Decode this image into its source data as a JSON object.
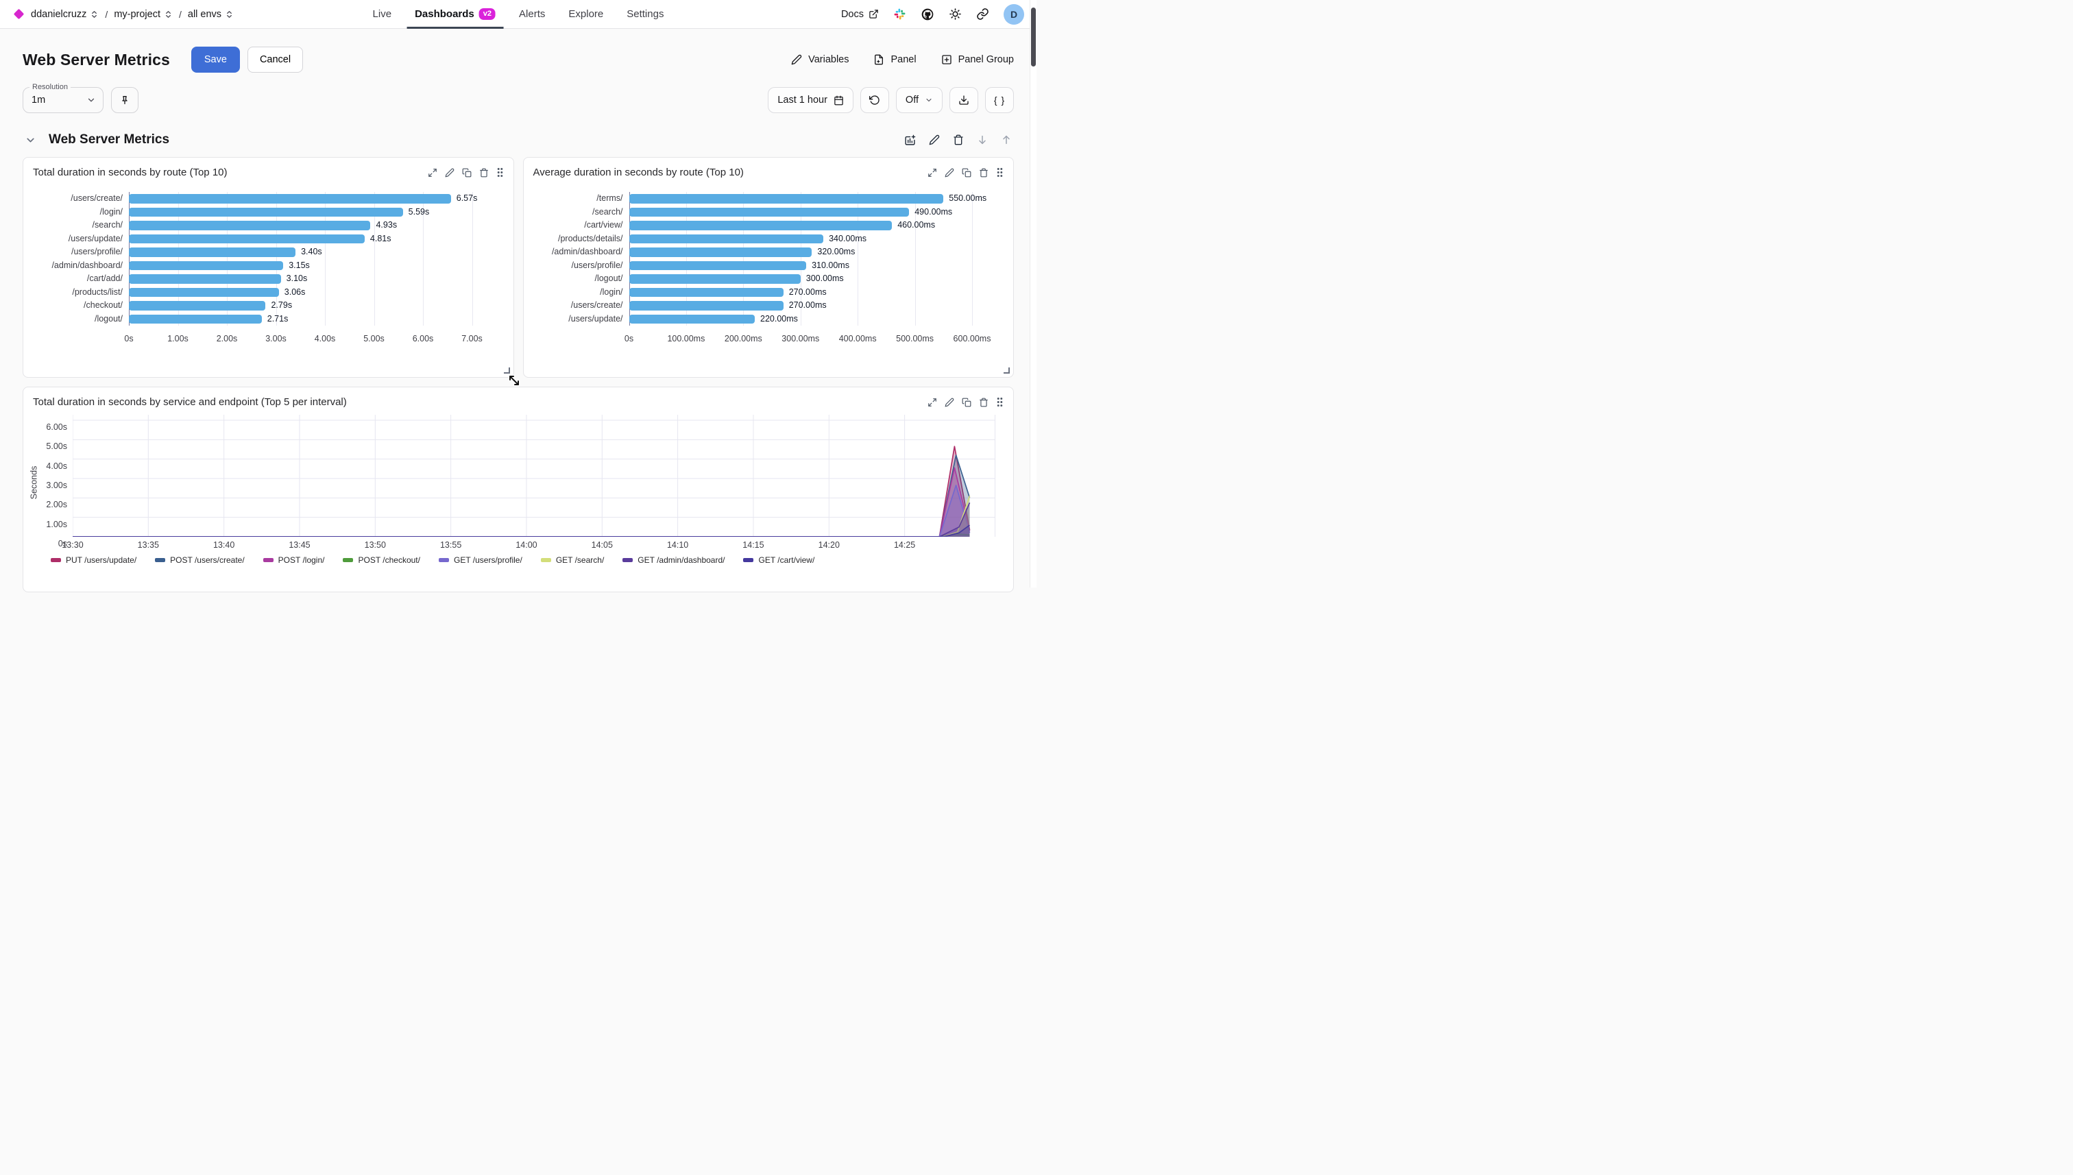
{
  "nav": {
    "breadcrumbs": [
      {
        "label": "ddanielcruzz"
      },
      {
        "label": "my-project"
      },
      {
        "label": "all envs"
      }
    ],
    "separator": "/",
    "tabs": [
      {
        "label": "Live",
        "active": false
      },
      {
        "label": "Dashboards",
        "active": true,
        "badge": "v2"
      },
      {
        "label": "Alerts",
        "active": false
      },
      {
        "label": "Explore",
        "active": false
      },
      {
        "label": "Settings",
        "active": false
      }
    ],
    "docs_label": "Docs",
    "icons": [
      "external-link-icon",
      "slack-icon",
      "github-icon",
      "theme-sun-icon",
      "share-link-icon"
    ],
    "avatar_initial": "D"
  },
  "header": {
    "title": "Web Server Metrics",
    "save_label": "Save",
    "cancel_label": "Cancel",
    "actions": [
      {
        "label": "Variables",
        "icon": "pencil-icon"
      },
      {
        "label": "Panel",
        "icon": "file-plus-icon"
      },
      {
        "label": "Panel Group",
        "icon": "plus-square-icon"
      }
    ]
  },
  "toolbar": {
    "resolution_label": "Resolution",
    "resolution_value": "1m",
    "pin_icon": "pin-icon",
    "time_range": "Last 1 hour",
    "refresh_value": "Off",
    "braces_label": "{ }"
  },
  "section": {
    "title": "Web Server Metrics"
  },
  "panels": [
    {
      "title": "Total duration in seconds by route (Top 10)"
    },
    {
      "title": "Average duration in seconds by route (Top 10)"
    },
    {
      "title": "Total duration in seconds by service and endpoint (Top 5 per interval)"
    }
  ],
  "colors": {
    "brand_magenta": "#da22da",
    "save_blue": "#3e6ed6",
    "bar_blue": "#58ace3",
    "active_tab_underline": "#3d4654",
    "avatar_bg": "#92c4f4"
  },
  "chart_data": [
    {
      "type": "bar",
      "orientation": "horizontal",
      "title": "Total duration in seconds by route (Top 10)",
      "categories": [
        "/users/create/",
        "/login/",
        "/search/",
        "/users/update/",
        "/users/profile/",
        "/admin/dashboard/",
        "/cart/add/",
        "/products/list/",
        "/checkout/",
        "/logout/"
      ],
      "values": [
        6.57,
        5.59,
        4.93,
        4.81,
        3.4,
        3.15,
        3.1,
        3.06,
        2.79,
        2.71
      ],
      "value_labels": [
        "6.57s",
        "5.59s",
        "4.93s",
        "4.81s",
        "3.40s",
        "3.15s",
        "3.10s",
        "3.06s",
        "2.79s",
        "2.71s"
      ],
      "x_ticks": [
        "0s",
        "1.00s",
        "2.00s",
        "3.00s",
        "4.00s",
        "5.00s",
        "6.00s",
        "7.00s"
      ],
      "xlim": [
        0,
        7
      ],
      "bar_color": "#58ace3",
      "grid": true
    },
    {
      "type": "bar",
      "orientation": "horizontal",
      "title": "Average duration in seconds by route (Top 10)",
      "categories": [
        "/terms/",
        "/search/",
        "/cart/view/",
        "/products/details/",
        "/admin/dashboard/",
        "/users/profile/",
        "/logout/",
        "/login/",
        "/users/create/",
        "/users/update/"
      ],
      "values": [
        550,
        490,
        460,
        340,
        320,
        310,
        300,
        270,
        270,
        220
      ],
      "value_labels": [
        "550.00ms",
        "490.00ms",
        "460.00ms",
        "340.00ms",
        "320.00ms",
        "310.00ms",
        "300.00ms",
        "270.00ms",
        "270.00ms",
        "220.00ms"
      ],
      "x_ticks": [
        "0s",
        "100.00ms",
        "200.00ms",
        "300.00ms",
        "400.00ms",
        "500.00ms",
        "600.00ms"
      ],
      "xlim": [
        0,
        600
      ],
      "bar_color": "#58ace3",
      "grid": true
    },
    {
      "type": "area",
      "title": "Total duration in seconds by service and endpoint (Top 5 per interval)",
      "ylabel": "Seconds",
      "y_ticks": [
        "6.00s",
        "5.00s",
        "4.00s",
        "3.00s",
        "2.00s",
        "1.00s",
        "0s"
      ],
      "ylim": [
        0,
        6
      ],
      "x_ticks": [
        "13:30",
        "13:35",
        "13:40",
        "13:45",
        "13:50",
        "13:55",
        "14:00",
        "14:05",
        "14:10",
        "14:15",
        "14:20",
        "14:25"
      ],
      "x_tick_interval_min": 5,
      "x_domain_minutes": [
        0,
        61
      ],
      "grid": true,
      "legend_position": "bottom",
      "series": [
        {
          "name": "PUT /users/update/",
          "color": "#ae2e68",
          "points": [
            [
              0,
              0
            ],
            [
              57.3,
              0
            ],
            [
              58.3,
              4.65
            ],
            [
              59.3,
              0.35
            ]
          ]
        },
        {
          "name": "POST /users/create/",
          "color": "#3a5f8f",
          "points": [
            [
              0,
              0
            ],
            [
              57.3,
              0
            ],
            [
              58.4,
              4.2
            ],
            [
              59.3,
              2.0
            ]
          ]
        },
        {
          "name": "POST /login/",
          "color": "#a93ba0",
          "points": [
            [
              0,
              0
            ],
            [
              57.3,
              0
            ],
            [
              58.3,
              3.55
            ],
            [
              59.3,
              0.3
            ]
          ]
        },
        {
          "name": "POST /checkout/",
          "color": "#4f9c3c",
          "points": [
            [
              0,
              0
            ],
            [
              57.3,
              0
            ],
            [
              58.3,
              0.15
            ],
            [
              59.3,
              0.1
            ]
          ]
        },
        {
          "name": "GET /users/profile/",
          "color": "#7668ce",
          "points": [
            [
              0,
              0
            ],
            [
              57.3,
              0
            ],
            [
              58.4,
              2.65
            ],
            [
              59.3,
              0.2
            ]
          ]
        },
        {
          "name": "GET /search/",
          "color": "#d3de7a",
          "points": [
            [
              0,
              0
            ],
            [
              57.5,
              0
            ],
            [
              58.5,
              0.25
            ],
            [
              59.3,
              2.1
            ]
          ]
        },
        {
          "name": "GET /admin/dashboard/",
          "color": "#5a3c9c",
          "points": [
            [
              0,
              0
            ],
            [
              57.3,
              0
            ],
            [
              58.6,
              0.5
            ],
            [
              59.3,
              1.75
            ]
          ]
        },
        {
          "name": "GET /cart/view/",
          "color": "#44399e",
          "points": [
            [
              0,
              0
            ],
            [
              57.6,
              0
            ],
            [
              58.6,
              0.2
            ],
            [
              59.3,
              0.6
            ]
          ]
        }
      ]
    }
  ]
}
